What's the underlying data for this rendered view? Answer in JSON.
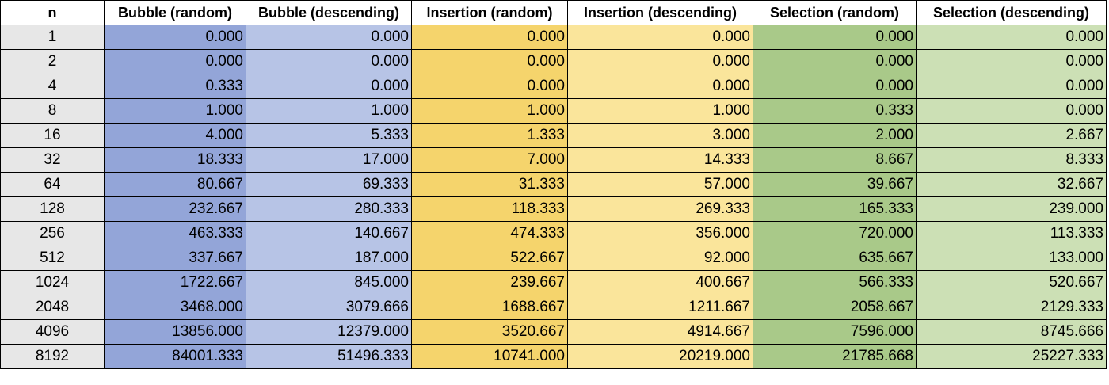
{
  "table": {
    "headers": [
      "n",
      "Bubble (random)",
      "Bubble (descending)",
      "Insertion (random)",
      "Insertion (descending)",
      "Selection (random)",
      "Selection (descending)"
    ],
    "rows": [
      [
        "1",
        "0.000",
        "0.000",
        "0.000",
        "0.000",
        "0.000",
        "0.000"
      ],
      [
        "2",
        "0.000",
        "0.000",
        "0.000",
        "0.000",
        "0.000",
        "0.000"
      ],
      [
        "4",
        "0.333",
        "0.000",
        "0.000",
        "0.000",
        "0.000",
        "0.000"
      ],
      [
        "8",
        "1.000",
        "1.000",
        "1.000",
        "1.000",
        "0.333",
        "0.000"
      ],
      [
        "16",
        "4.000",
        "5.333",
        "1.333",
        "3.000",
        "2.000",
        "2.667"
      ],
      [
        "32",
        "18.333",
        "17.000",
        "7.000",
        "14.333",
        "8.667",
        "8.333"
      ],
      [
        "64",
        "80.667",
        "69.333",
        "31.333",
        "57.000",
        "39.667",
        "32.667"
      ],
      [
        "128",
        "232.667",
        "280.333",
        "118.333",
        "269.333",
        "165.333",
        "239.000"
      ],
      [
        "256",
        "463.333",
        "140.667",
        "474.333",
        "356.000",
        "720.000",
        "113.333"
      ],
      [
        "512",
        "337.667",
        "187.000",
        "522.667",
        "92.000",
        "635.667",
        "133.000"
      ],
      [
        "1024",
        "1722.667",
        "845.000",
        "239.667",
        "400.667",
        "566.333",
        "520.667"
      ],
      [
        "2048",
        "3468.000",
        "3079.666",
        "1688.667",
        "1211.667",
        "2058.667",
        "2129.333"
      ],
      [
        "4096",
        "13856.000",
        "12379.000",
        "3520.667",
        "4914.667",
        "7596.000",
        "8745.666"
      ],
      [
        "8192",
        "84001.333",
        "51496.333",
        "10741.000",
        "20219.000",
        "21785.668",
        "25227.333"
      ]
    ]
  },
  "colors": {
    "n_column": "#e7e7e7",
    "bubble_random": "#93a5d8",
    "bubble_descending": "#b7c4e6",
    "insertion_random": "#f5d46c",
    "insertion_descending": "#fae59b",
    "selection_random": "#a9c989",
    "selection_descending": "#cce0b5"
  }
}
